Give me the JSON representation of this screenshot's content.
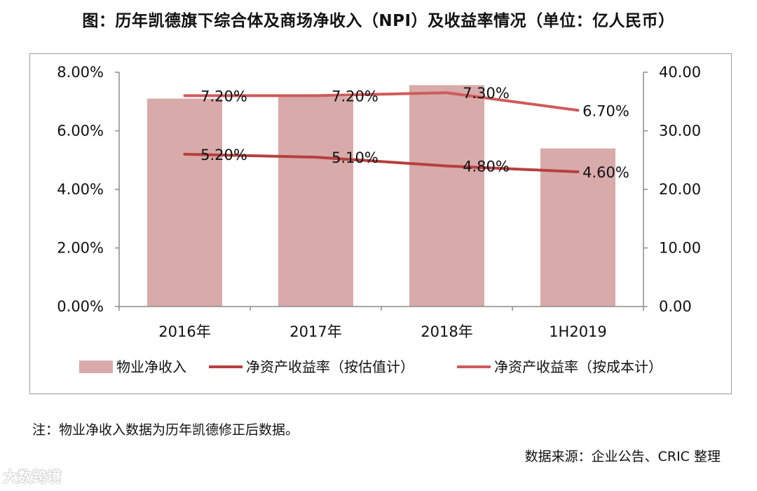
{
  "title": "图：历年凯德旗下综合体及商场净收入（NPI）及收益率情况（单位：亿人民币）",
  "note": "注：物业净收入数据为历年凯德修正后数据。",
  "source": "数据来源：企业公告、CRIC 整理",
  "watermark": "大数跨境",
  "colors": {
    "bar": "#d9aaaa",
    "line_estimate": "#b5403f",
    "line_cost": "#cf5b5b",
    "axis": "#8c8c8c"
  },
  "chart_data": {
    "type": "bar+line",
    "categories": [
      "2016年",
      "2017年",
      "2018年",
      "1H2019"
    ],
    "left_axis": {
      "ticks": [
        "0.00%",
        "2.00%",
        "4.00%",
        "6.00%",
        "8.00%"
      ],
      "range": [
        0,
        8
      ]
    },
    "right_axis": {
      "ticks": [
        "0.00",
        "10.00",
        "20.00",
        "30.00",
        "40.00"
      ],
      "range": [
        0,
        40
      ]
    },
    "series": [
      {
        "name": "物业净收入",
        "kind": "bar",
        "axis": "right",
        "values": [
          35.5,
          35.8,
          37.8,
          27.0
        ]
      },
      {
        "name": "净资产收益率（按估值计）",
        "kind": "line",
        "axis": "left",
        "values": [
          5.2,
          5.1,
          4.8,
          4.6
        ],
        "labels": [
          "5.20%",
          "5.10%",
          "4.80%",
          "4.60%"
        ]
      },
      {
        "name": "净资产收益率（按成本计）",
        "kind": "line",
        "axis": "left",
        "values": [
          7.2,
          7.2,
          7.3,
          6.7
        ],
        "labels": [
          "7.20%",
          "7.20%",
          "7.30%",
          "6.70%"
        ]
      }
    ]
  }
}
